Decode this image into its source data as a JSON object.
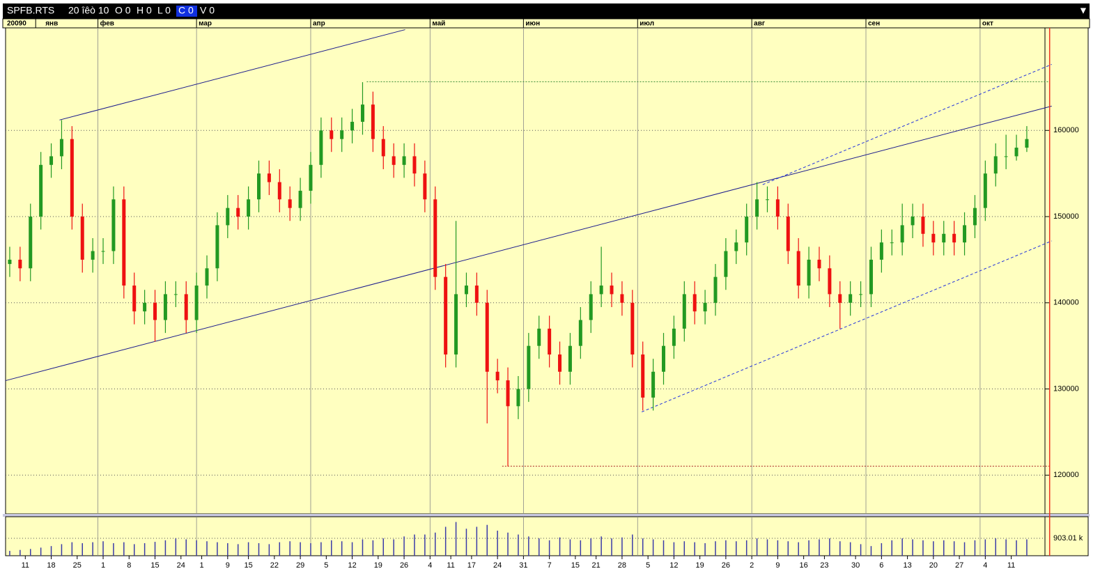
{
  "header": {
    "symbol": "SPFB.RTS",
    "date": "20 îêò 10",
    "fields": [
      "O 0",
      "H 0",
      "L 0",
      "C 0",
      "V 0"
    ],
    "menu": "▼"
  },
  "chart_data": {
    "type": "candlestick",
    "year_label": "20090",
    "x": [
      0,
      2,
      4,
      6,
      8,
      10,
      12,
      14,
      16,
      18,
      20,
      22,
      24,
      26,
      28,
      30,
      32,
      34,
      36,
      38,
      40,
      42,
      44,
      46,
      48,
      50,
      52,
      54,
      56,
      58,
      60,
      62,
      64,
      66,
      68,
      70,
      72,
      74,
      76,
      78,
      80,
      82,
      84,
      86,
      88,
      90,
      92,
      94,
      96,
      98,
      100,
      102,
      104,
      106,
      108,
      110,
      112,
      114,
      116,
      118,
      120,
      122,
      124,
      126,
      128,
      130,
      132,
      134,
      136,
      138,
      140,
      142,
      144,
      146,
      148,
      150,
      152,
      154,
      156,
      158,
      160,
      162,
      164,
      166,
      168,
      170,
      172,
      174,
      176,
      178,
      180,
      182,
      184,
      186,
      188,
      190,
      192,
      194,
      196
    ],
    "open": [
      144500,
      145000,
      144000,
      150000,
      156000,
      157000,
      159000,
      150000,
      145000,
      146000,
      146000,
      152000,
      142000,
      139000,
      140000,
      138000,
      141000,
      141000,
      138000,
      142000,
      144000,
      149000,
      151000,
      150000,
      152000,
      155000,
      154000,
      152000,
      151000,
      153000,
      156000,
      160000,
      159000,
      160000,
      161000,
      163000,
      159000,
      157000,
      156000,
      157000,
      155000,
      152000,
      143000,
      134000,
      141000,
      142000,
      140000,
      132000,
      131000,
      128000,
      130000,
      135000,
      137000,
      134000,
      132000,
      135000,
      138000,
      141000,
      142000,
      141000,
      140000,
      134000,
      129000,
      132000,
      135000,
      137000,
      141000,
      139000,
      140000,
      143000,
      146000,
      147000,
      150000,
      152000,
      152000,
      150000,
      146000,
      142000,
      145000,
      144000,
      141000,
      140000,
      141000,
      141000,
      145000,
      147000,
      147000,
      149000,
      150000,
      148000,
      147000,
      148000,
      147000,
      149000,
      151000,
      155000,
      157000,
      157000,
      158000
    ],
    "high": [
      146500,
      146500,
      151500,
      157500,
      158500,
      161200,
      160500,
      151500,
      147500,
      147500,
      153500,
      153500,
      143500,
      141500,
      141500,
      142500,
      142500,
      142500,
      143500,
      145500,
      150500,
      152500,
      152500,
      153500,
      156500,
      156500,
      155500,
      153500,
      154500,
      157500,
      161500,
      161500,
      161500,
      162500,
      165600,
      164500,
      160500,
      158500,
      158500,
      158500,
      156500,
      153500,
      144500,
      149500,
      143500,
      143500,
      141500,
      133500,
      132500,
      131500,
      136500,
      138500,
      138500,
      135500,
      136500,
      139500,
      142500,
      146500,
      143500,
      142500,
      141500,
      135500,
      133500,
      136500,
      138500,
      142500,
      142500,
      141500,
      144500,
      147500,
      148500,
      151500,
      154000,
      153500,
      153500,
      151500,
      147500,
      146500,
      146500,
      145500,
      142500,
      142500,
      142500,
      146500,
      148500,
      148500,
      151500,
      151500,
      151500,
      149500,
      149500,
      149500,
      150500,
      152500,
      156500,
      158500,
      159500,
      159500,
      160500
    ],
    "low": [
      143000,
      142500,
      142500,
      148500,
      154500,
      155500,
      148500,
      143500,
      143500,
      144500,
      144500,
      140500,
      137500,
      137500,
      135500,
      136500,
      139500,
      136500,
      136500,
      140500,
      142500,
      147500,
      148500,
      148500,
      150500,
      152500,
      150500,
      149500,
      149500,
      151500,
      154500,
      157500,
      157500,
      158500,
      159500,
      157500,
      155500,
      154500,
      154500,
      153500,
      150500,
      141500,
      132500,
      132500,
      139500,
      138500,
      126000,
      129500,
      121000,
      126500,
      128500,
      133500,
      132500,
      130500,
      130500,
      133500,
      136500,
      139500,
      139500,
      138500,
      132500,
      127500,
      127500,
      130500,
      133500,
      135500,
      137500,
      137500,
      138500,
      141500,
      144500,
      145500,
      148500,
      150500,
      148500,
      144500,
      140500,
      140500,
      142500,
      139500,
      137000,
      138500,
      139500,
      139500,
      143500,
      145500,
      145500,
      147500,
      146500,
      145500,
      145500,
      145500,
      145500,
      147500,
      149500,
      153500,
      155500,
      156500,
      157500
    ],
    "close": [
      145000,
      144000,
      150000,
      156000,
      157000,
      159000,
      150000,
      145000,
      146000,
      146000,
      152000,
      142000,
      139000,
      140000,
      138000,
      141000,
      141000,
      138000,
      142000,
      144000,
      149000,
      151000,
      150000,
      152000,
      155000,
      154000,
      152000,
      151000,
      153000,
      156000,
      160000,
      159000,
      160000,
      161000,
      163000,
      159000,
      157000,
      156000,
      157000,
      155000,
      152000,
      143000,
      134000,
      141000,
      142000,
      140000,
      132000,
      131000,
      128000,
      130000,
      135000,
      137000,
      134000,
      132000,
      135000,
      138000,
      141000,
      142000,
      141000,
      140000,
      134000,
      129000,
      132000,
      135000,
      137000,
      141000,
      139000,
      140000,
      143000,
      146000,
      147000,
      150000,
      152000,
      152000,
      150000,
      146000,
      142000,
      145000,
      144000,
      141000,
      140000,
      141000,
      141000,
      145000,
      147000,
      147000,
      149000,
      150000,
      148000,
      147000,
      148000,
      147000,
      149000,
      151000,
      155000,
      157000,
      157000,
      158000,
      159000
    ],
    "up_color": "#229922",
    "down_color": "#ee1111",
    "xlim": [
      -0.8,
      199.5
    ],
    "xticks": [
      {
        "value": 5,
        "label": "янв"
      },
      {
        "value": 17,
        "label": "фев"
      },
      {
        "value": 36,
        "label": "мар"
      },
      {
        "value": 58,
        "label": "апр"
      },
      {
        "value": 81,
        "label": "май"
      },
      {
        "value": 99,
        "label": "июн"
      },
      {
        "value": 121,
        "label": "июл"
      },
      {
        "value": 143,
        "label": "авг"
      },
      {
        "value": 165,
        "label": "сен"
      },
      {
        "value": 187,
        "label": "окт"
      }
    ],
    "day_ticks": [
      {
        "value": 3,
        "label": "11"
      },
      {
        "value": 8,
        "label": "18"
      },
      {
        "value": 13,
        "label": "25"
      },
      {
        "value": 18,
        "label": "1"
      },
      {
        "value": 23,
        "label": "8"
      },
      {
        "value": 28,
        "label": "15"
      },
      {
        "value": 33,
        "label": "24"
      },
      {
        "value": 37,
        "label": "1"
      },
      {
        "value": 42,
        "label": "9"
      },
      {
        "value": 46,
        "label": "15"
      },
      {
        "value": 51,
        "label": "22"
      },
      {
        "value": 56,
        "label": "29"
      },
      {
        "value": 61,
        "label": "5"
      },
      {
        "value": 66,
        "label": "12"
      },
      {
        "value": 71,
        "label": "19"
      },
      {
        "value": 76,
        "label": "26"
      },
      {
        "value": 81,
        "label": "4"
      },
      {
        "value": 85,
        "label": "11"
      },
      {
        "value": 89,
        "label": "17"
      },
      {
        "value": 94,
        "label": "24"
      },
      {
        "value": 99,
        "label": "31"
      },
      {
        "value": 104,
        "label": "7"
      },
      {
        "value": 109,
        "label": "15"
      },
      {
        "value": 113,
        "label": "21"
      },
      {
        "value": 118,
        "label": "28"
      },
      {
        "value": 123,
        "label": "5"
      },
      {
        "value": 128,
        "label": "12"
      },
      {
        "value": 133,
        "label": "19"
      },
      {
        "value": 138,
        "label": "26"
      },
      {
        "value": 143,
        "label": "2"
      },
      {
        "value": 148,
        "label": "9"
      },
      {
        "value": 153,
        "label": "16"
      },
      {
        "value": 157,
        "label": "23"
      },
      {
        "value": 163,
        "label": "30"
      },
      {
        "value": 168,
        "label": "6"
      },
      {
        "value": 173,
        "label": "13"
      },
      {
        "value": 178,
        "label": "20"
      },
      {
        "value": 183,
        "label": "27"
      },
      {
        "value": 188,
        "label": "4"
      },
      {
        "value": 193,
        "label": "11"
      }
    ],
    "ylim": [
      115500,
      171900
    ],
    "yticks": [
      120000,
      130000,
      140000,
      150000,
      160000
    ],
    "grid": true,
    "trend_lines": [
      {
        "x": [
          9.6,
          76.2
        ],
        "y": [
          161210,
          171694
        ],
        "style": "solid",
        "color": "#1a1a8c"
      },
      {
        "x": [
          -0.8,
          200.8
        ],
        "y": [
          130968,
          162823
        ],
        "style": "solid",
        "color": "#1a1a8c"
      },
      {
        "x": [
          121.8,
          200.8
        ],
        "y": [
          127339,
          147177
        ],
        "style": "dashed",
        "color": "#2233dd"
      },
      {
        "x": [
          145.1,
          200.8
        ],
        "y": [
          153710,
          167661
        ],
        "style": "dashed",
        "color": "#2233dd"
      },
      {
        "x": [
          94.9,
          200.4
        ],
        "y": [
          121048,
          121048
        ],
        "style": "dotted",
        "color": "#aa2222"
      },
      {
        "x": [
          68.8,
          200.4
        ],
        "y": [
          165645,
          165645
        ],
        "style": "dotted",
        "color": "#338833"
      }
    ],
    "cursor_x": 200.4,
    "cursor_color": "#ee3322",
    "volume": {
      "values": [
        250,
        300,
        350,
        420,
        500,
        600,
        700,
        650,
        700,
        750,
        650,
        700,
        600,
        650,
        720,
        800,
        900,
        850,
        800,
        750,
        700,
        650,
        600,
        700,
        650,
        600,
        700,
        750,
        700,
        650,
        700,
        800,
        750,
        700,
        850,
        800,
        900,
        850,
        1000,
        1100,
        1100,
        1200,
        1500,
        1750,
        1400,
        1500,
        1600,
        1300,
        1200,
        1100,
        1000,
        900,
        800,
        950,
        850,
        800,
        900,
        1000,
        900,
        950,
        1100,
        900,
        850,
        800,
        700,
        750,
        700,
        650,
        750,
        800,
        750,
        800,
        900,
        850,
        800,
        750,
        700,
        800,
        850,
        900,
        750,
        700,
        600,
        500,
        650,
        800,
        900,
        850,
        800,
        750,
        800,
        750,
        700,
        800,
        850,
        900,
        850,
        800,
        850
      ],
      "color": "#3a3aa8",
      "ylim": [
        0,
        2023
      ],
      "yticks": [
        {
          "value": 903.01,
          "label": "903.01 k"
        }
      ]
    }
  }
}
